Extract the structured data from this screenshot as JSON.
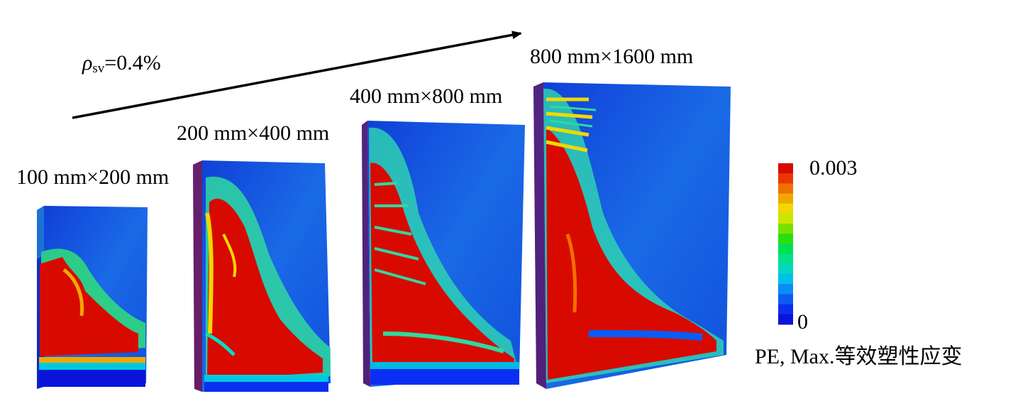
{
  "ratio_label": {
    "symbol": "ρ",
    "subscript": "sv",
    "value": "=0.4%"
  },
  "specimens": [
    {
      "label": "100 mm×200 mm"
    },
    {
      "label": "200 mm×400 mm"
    },
    {
      "label": "400 mm×800 mm"
    },
    {
      "label": "800 mm×1600 mm"
    }
  ],
  "colorbar": {
    "max_label": "0.003",
    "min_label": "0",
    "title": "PE, Max.等效塑性应变",
    "colors": [
      "#0a14d8",
      "#0a2ef2",
      "#0a5cf5",
      "#0a8cf5",
      "#00bfe8",
      "#00d8c0",
      "#00e08c",
      "#00e050",
      "#28e010",
      "#78e000",
      "#c8e600",
      "#f0d800",
      "#f0a800",
      "#f07000",
      "#e83800",
      "#d80a00"
    ]
  }
}
